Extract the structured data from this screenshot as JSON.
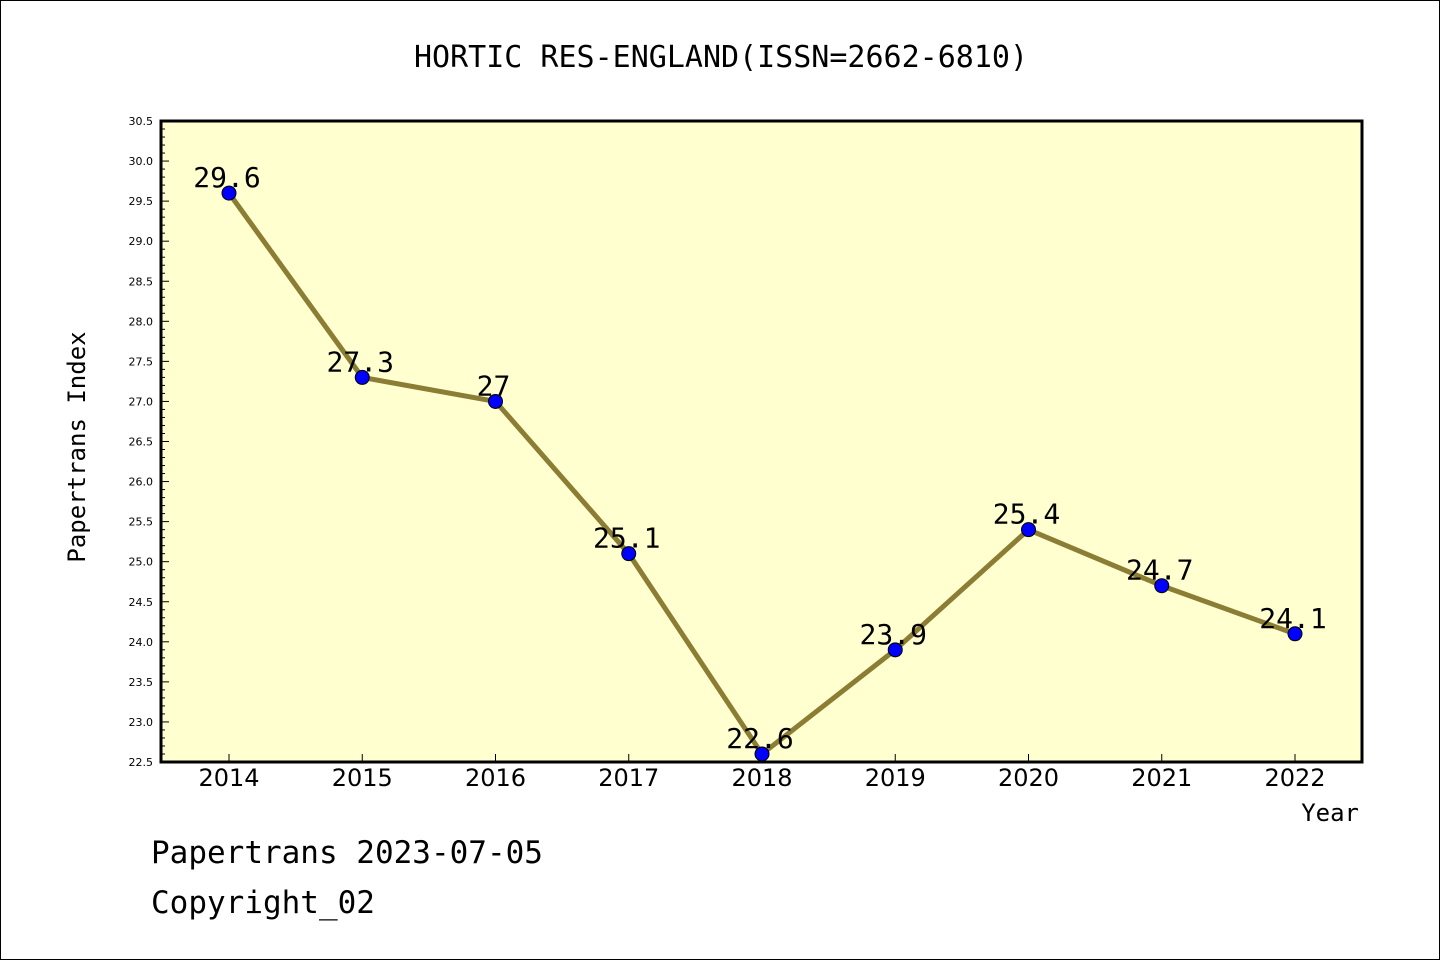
{
  "footer": {
    "date_line": "Papertrans 2023-07-05",
    "copyright": "Copyright_02"
  },
  "chart_data": {
    "type": "line",
    "title": "HORTIC RES-ENGLAND(ISSN=2662-6810)",
    "xlabel": "Year",
    "ylabel": "Papertrans Index",
    "categories": [
      "2014",
      "2015",
      "2016",
      "2017",
      "2018",
      "2019",
      "2020",
      "2021",
      "2022"
    ],
    "series": [
      {
        "values": [
          29.6,
          27.3,
          27.0,
          25.1,
          22.6,
          23.9,
          25.4,
          24.7,
          24.1
        ],
        "labels": [
          "29.6",
          "27.3",
          "27",
          "25.1",
          "22.6",
          "23.9",
          "25.4",
          "24.7",
          "24.1"
        ]
      }
    ],
    "ylim": [
      22.5,
      30.5
    ],
    "yticks": [
      "22.5",
      "23.0",
      "23.5",
      "24.0",
      "24.5",
      "25.0",
      "25.5",
      "26.0",
      "26.5",
      "27.0",
      "27.5",
      "28.0",
      "28.5",
      "29.0",
      "29.5",
      "30.0",
      "30.5"
    ],
    "grid": false,
    "colors": {
      "plot_background": "#ffffd0",
      "line": "#8b7d33",
      "marker": "#0000ff"
    }
  }
}
